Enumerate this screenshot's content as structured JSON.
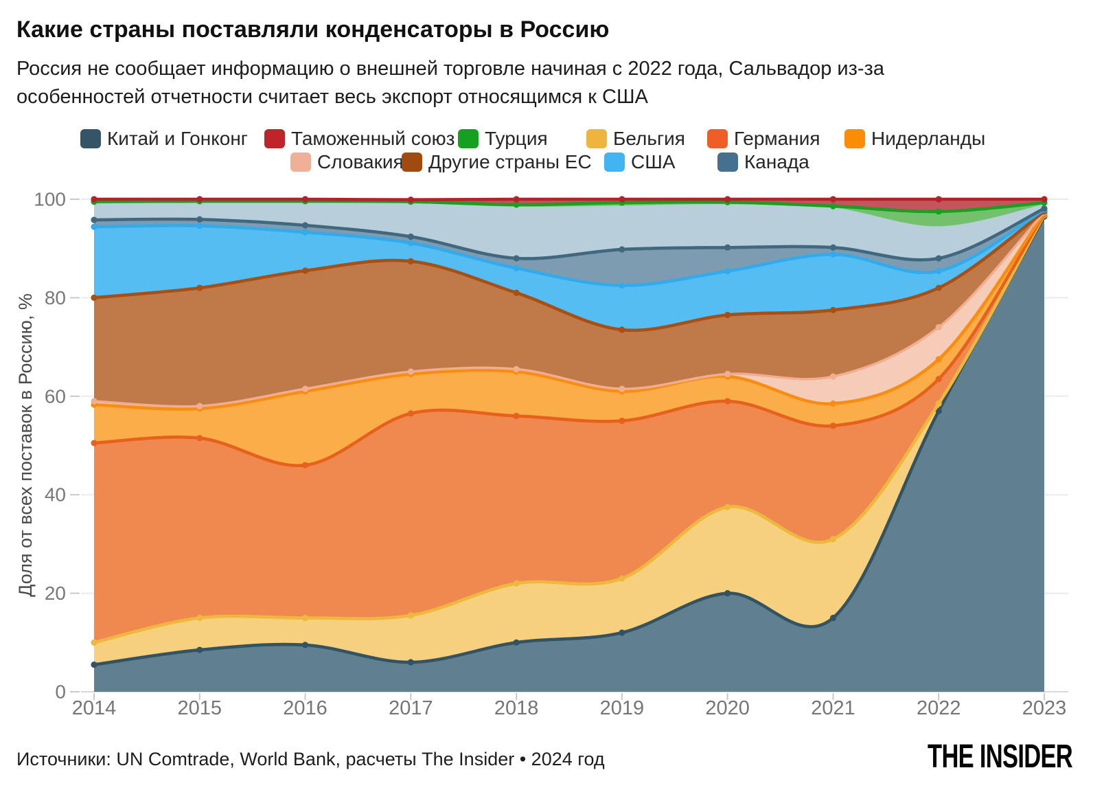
{
  "header": {
    "title": "Какие страны поставляли конденсаторы в Россию",
    "subtitle": "Россия не сообщает информацию о внешней торговле начиная с 2022 года, Сальвадор из-за особенностей отчетности считает весь экспорт относящимся к США",
    "subtitle_lines": [
      "Россия не сообщает информацию о внешней торговле начиная с 2022 года, Сальвадор из-за",
      "особенностей отчетности считает весь экспорт относящимся к США"
    ]
  },
  "legend": {
    "row1": [
      {
        "label": "Китай и Гонконг",
        "color": "#345565"
      },
      {
        "label": "Таможенный союз",
        "color": "#bf242b"
      },
      {
        "label": "Турция",
        "color": "#14a120"
      },
      {
        "label": "Бельгия",
        "color": "#eeb43e"
      },
      {
        "label": "Германия",
        "color": "#ed5f26"
      },
      {
        "label": "Нидерланды",
        "color": "#fb8c05"
      }
    ],
    "row2": [
      {
        "label": "Словакия",
        "color": "#f0b098"
      },
      {
        "label": "Другие страны ЕС",
        "color": "#a04a10"
      },
      {
        "label": "США",
        "color": "#41b4f1"
      },
      {
        "label": "Канада",
        "color": "#45708e"
      }
    ]
  },
  "chart_data": {
    "type": "area",
    "stacked": true,
    "unit": "%",
    "title": "Какие страны поставляли конденсаторы в Россию",
    "xlabel": "",
    "ylabel": "Доля от всех поставок в Россию, %",
    "x": [
      2014,
      2015,
      2016,
      2017,
      2018,
      2019,
      2020,
      2021,
      2022,
      2023
    ],
    "ylim": [
      0,
      100
    ],
    "yticks": [
      0,
      20,
      40,
      60,
      80,
      100
    ],
    "grid": "horizontal",
    "legend_position": "top",
    "series": [
      {
        "key": "china",
        "name": "Китай и Гонконг",
        "in_legend": true,
        "line": "#315366",
        "fill": "#61808f",
        "values": [
          5.5,
          8.5,
          9.5,
          6.0,
          10.0,
          12.0,
          20.0,
          15.0,
          57.0,
          96.5
        ]
      },
      {
        "key": "belgium",
        "name": "Бельгия",
        "in_legend": true,
        "line": "#ecb83d",
        "fill": "#f6d07e",
        "values": [
          4.5,
          6.5,
          5.5,
          9.5,
          12.0,
          11.0,
          17.5,
          16.0,
          1.5,
          0.3
        ]
      },
      {
        "key": "germany",
        "name": "Германия",
        "in_legend": true,
        "line": "#e7611e",
        "fill": "#f0894f",
        "values": [
          40.5,
          36.5,
          31.0,
          41.0,
          34.0,
          32.0,
          21.5,
          23.0,
          5.0,
          0.2
        ]
      },
      {
        "key": "netherlands",
        "name": "Нидерланды",
        "in_legend": true,
        "line": "#fb8d0e",
        "fill": "#fbad49",
        "values": [
          7.8,
          6.0,
          15.0,
          8.0,
          9.0,
          6.0,
          5.0,
          4.5,
          4.0,
          0.2
        ]
      },
      {
        "key": "slovakia",
        "name": "Словакия",
        "in_legend": true,
        "line": "#efae92",
        "fill": "#f5ccb7",
        "values": [
          0.7,
          0.5,
          0.5,
          0.5,
          0.5,
          0.5,
          0.5,
          5.5,
          6.5,
          0.15
        ]
      },
      {
        "key": "other_eu",
        "name": "Другие страны ЕС",
        "in_legend": true,
        "line": "#ab4e10",
        "fill": "#c07a4a",
        "values": [
          21.0,
          24.0,
          24.0,
          22.4,
          15.5,
          12.0,
          12.0,
          13.5,
          8.0,
          0.15
        ]
      },
      {
        "key": "usa",
        "name": "США",
        "in_legend": true,
        "line": "#30acee",
        "fill": "#55bdf2",
        "values": [
          14.4,
          12.6,
          7.8,
          3.7,
          5.0,
          9.0,
          8.9,
          11.3,
          3.4,
          0.4
        ]
      },
      {
        "key": "canada",
        "name": "Канада",
        "in_legend": true,
        "line": "#40687f",
        "fill": "#7e9cb1",
        "values": [
          1.4,
          1.3,
          1.4,
          1.3,
          2.0,
          7.3,
          4.8,
          1.4,
          2.6,
          0.2
        ]
      },
      {
        "key": "unlabeled",
        "name": "",
        "in_legend": false,
        "line": null,
        "fill": "#b8cedb",
        "values": [
          3.4,
          3.4,
          4.6,
          6.8,
          10.5,
          8.9,
          8.8,
          8.1,
          6.5,
          0.9
        ]
      },
      {
        "key": "turkey",
        "name": "Турция",
        "in_legend": true,
        "line": "#16a120",
        "fill": "#74c16d",
        "values": [
          0.3,
          0.3,
          0.3,
          0.3,
          0.4,
          0.6,
          0.4,
          0.3,
          3.0,
          0.3
        ]
      },
      {
        "key": "customs_union",
        "name": "Таможенный союз",
        "in_legend": true,
        "line": "#b4222b",
        "fill": "#c4555d",
        "values": [
          0.5,
          0.4,
          0.4,
          0.4,
          1.1,
          0.7,
          0.6,
          1.4,
          2.5,
          0.7
        ]
      }
    ]
  },
  "footer": {
    "source": "Источники: UN Comtrade, World Bank, расчеты The Insider • 2024 год",
    "logo": "THE INSIDER"
  }
}
